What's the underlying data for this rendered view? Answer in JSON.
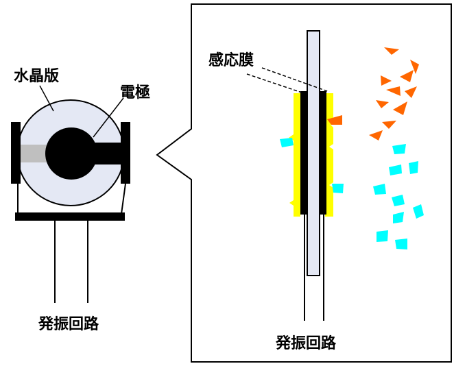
{
  "labels": {
    "crystal_plate": "水晶版",
    "electrode": "電極",
    "oscillator_left": "発振回路",
    "sensitive_film": "感応膜",
    "oscillator_right": "発振回路"
  },
  "colors": {
    "crystal": "#e4e8f4",
    "electrode": "#000000",
    "lead": "#bfbfbf",
    "film": "#ffff00",
    "molecule_orange": "#ff6600",
    "molecule_cyan": "#00ffff"
  },
  "molecule_counts": {
    "orange_in_gas": 12,
    "orange_adsorbed": 1,
    "cyan_in_gas": 10,
    "cyan_adsorbed": 2
  }
}
